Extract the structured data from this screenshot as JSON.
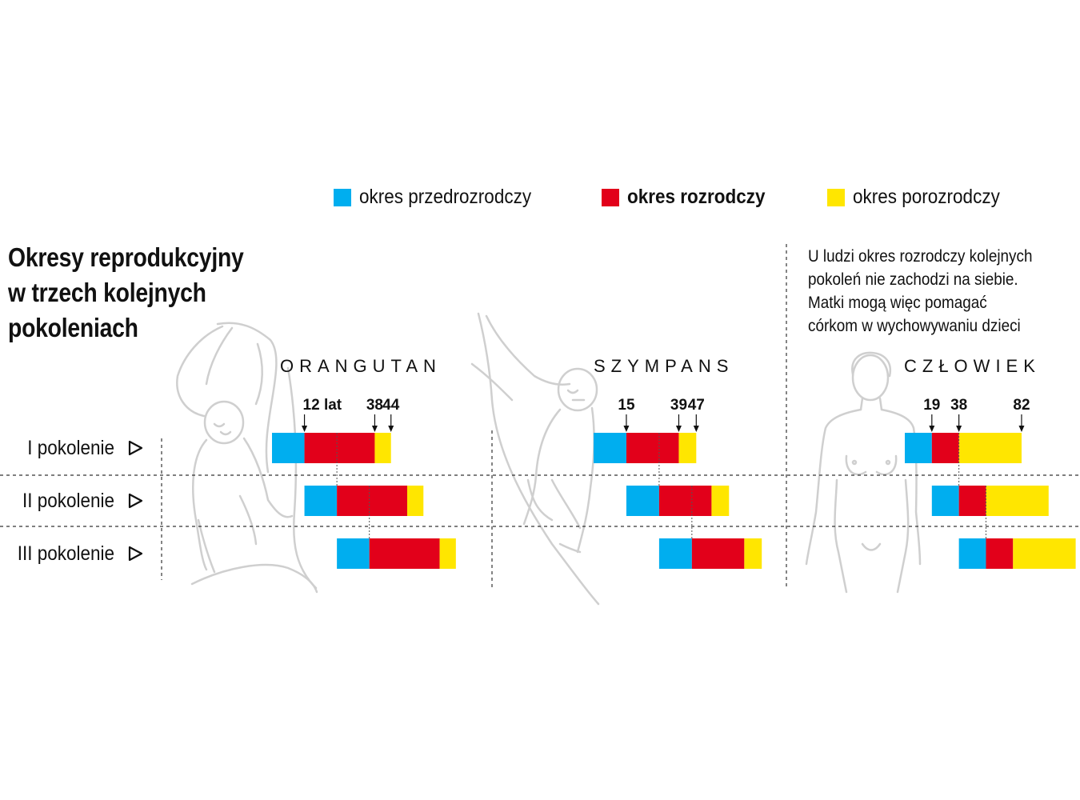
{
  "legend": [
    {
      "label": "okres przedrozrodczy",
      "color": "#00AEEF",
      "bold": false
    },
    {
      "label": "okres rozrodczy",
      "color": "#E2001A",
      "bold": true
    },
    {
      "label": "okres porozrodczy",
      "color": "#FFE600",
      "bold": false
    }
  ],
  "title": {
    "line1": "Okresy reprodukcyjny",
    "line2": "w trzech kolejnych",
    "line3": "pokoleniach"
  },
  "note": {
    "line1": "U ludzi okres rozrodczy kolejnych",
    "line2": "pokoleń nie zachodzi na siebie.",
    "line3": "Matki mogą więc pomagać",
    "line4": "córkom w wychowywaniu dzieci"
  },
  "icons": [
    "orangutan-illustration",
    "chimpanzee-illustration",
    "human-illustration",
    "triangle-arrow-icon",
    "down-arrow-icon"
  ],
  "chart_data": {
    "type": "bar",
    "rows": [
      "I pokolenie",
      "II pokolenie",
      "III pokolenie"
    ],
    "species": [
      {
        "name": "ORANGUTAN",
        "puberty": 12,
        "menopause": 38,
        "lifespan": 44,
        "age_labels": [
          "12 lat",
          "38",
          "44"
        ]
      },
      {
        "name": "SZYMPANS",
        "puberty": 15,
        "menopause": 39,
        "lifespan": 47,
        "age_labels": [
          "15",
          "39",
          "47"
        ]
      },
      {
        "name": "CZŁOWIEK",
        "puberty": 19,
        "menopause": 38,
        "lifespan": 82,
        "age_labels": [
          "19",
          "38",
          "82"
        ]
      }
    ],
    "colors": {
      "pre": "#00AEEF",
      "repro": "#E2001A",
      "post": "#FFE600"
    }
  }
}
